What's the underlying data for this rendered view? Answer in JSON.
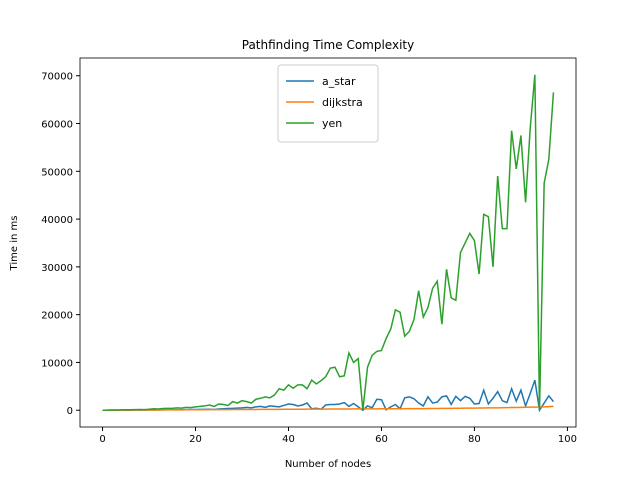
{
  "chart_data": {
    "type": "line",
    "title": "Pathfinding Time Complexity",
    "x_label": "Number of nodes",
    "y_label": "Time in ms",
    "x": [
      0,
      1,
      2,
      3,
      4,
      5,
      6,
      7,
      8,
      9,
      10,
      11,
      12,
      13,
      14,
      15,
      16,
      17,
      18,
      19,
      20,
      21,
      22,
      23,
      24,
      25,
      26,
      27,
      28,
      29,
      30,
      31,
      32,
      33,
      34,
      35,
      36,
      37,
      38,
      39,
      40,
      41,
      42,
      43,
      44,
      45,
      46,
      47,
      48,
      49,
      50,
      51,
      52,
      53,
      54,
      55,
      56,
      57,
      58,
      59,
      60,
      61,
      62,
      63,
      64,
      65,
      66,
      67,
      68,
      69,
      70,
      71,
      72,
      73,
      74,
      75,
      76,
      77,
      78,
      79,
      80,
      81,
      82,
      83,
      84,
      85,
      86,
      87,
      88,
      89,
      90,
      91,
      92,
      93,
      94,
      95,
      96,
      97
    ],
    "series": [
      {
        "name": "a_star",
        "color": "#1f77b4",
        "values": [
          0,
          5,
          10,
          15,
          20,
          25,
          30,
          35,
          40,
          45,
          50,
          60,
          70,
          80,
          90,
          100,
          110,
          120,
          130,
          140,
          150,
          170,
          180,
          200,
          150,
          250,
          300,
          350,
          400,
          450,
          500,
          600,
          500,
          700,
          800,
          600,
          900,
          800,
          700,
          1000,
          1300,
          1200,
          900,
          1100,
          1500,
          300,
          400,
          200,
          1100,
          1200,
          1200,
          1300,
          1600,
          800,
          1400,
          700,
          0,
          900,
          500,
          2300,
          2200,
          100,
          700,
          1200,
          300,
          2600,
          2800,
          2400,
          1500,
          900,
          2800,
          1500,
          1700,
          2800,
          3000,
          1200,
          2900,
          2000,
          2900,
          2500,
          1300,
          1400,
          4200,
          1300,
          2500,
          3900,
          2000,
          1600,
          4500,
          1900,
          4200,
          900,
          3500,
          6300,
          0,
          1500,
          3000,
          1800
        ]
      },
      {
        "name": "dijkstra",
        "color": "#ff7f0e",
        "values": [
          0,
          5,
          10,
          15,
          20,
          25,
          30,
          35,
          40,
          45,
          50,
          55,
          60,
          65,
          70,
          75,
          80,
          85,
          90,
          95,
          100,
          105,
          110,
          115,
          120,
          125,
          130,
          135,
          140,
          145,
          150,
          155,
          160,
          165,
          170,
          175,
          180,
          185,
          190,
          195,
          200,
          205,
          210,
          215,
          220,
          225,
          230,
          235,
          240,
          245,
          250,
          255,
          260,
          265,
          270,
          275,
          280,
          285,
          290,
          295,
          300,
          305,
          310,
          315,
          320,
          325,
          330,
          335,
          340,
          345,
          350,
          360,
          370,
          380,
          390,
          400,
          410,
          420,
          430,
          440,
          450,
          460,
          470,
          480,
          490,
          500,
          520,
          540,
          560,
          580,
          600,
          620,
          640,
          660,
          680,
          700,
          750,
          800
        ]
      },
      {
        "name": "yen",
        "color": "#2ca02c",
        "values": [
          0,
          20,
          40,
          60,
          80,
          100,
          90,
          120,
          150,
          130,
          200,
          300,
          250,
          350,
          400,
          380,
          500,
          450,
          600,
          550,
          700,
          800,
          900,
          1100,
          800,
          1300,
          1200,
          1000,
          1800,
          1500,
          2000,
          1800,
          1500,
          2300,
          2500,
          2800,
          2600,
          3200,
          4500,
          4200,
          5300,
          4600,
          5300,
          5300,
          4500,
          6300,
          5500,
          6200,
          7000,
          8800,
          9000,
          7000,
          7200,
          12000,
          10000,
          10800,
          0,
          9000,
          11500,
          12300,
          12500,
          15000,
          17000,
          21000,
          20500,
          15500,
          16500,
          19000,
          25000,
          19500,
          21500,
          25500,
          27000,
          18000,
          29500,
          23500,
          23000,
          33000,
          35000,
          37000,
          35500,
          28500,
          41000,
          40500,
          30000,
          49000,
          38000,
          38000,
          58500,
          50500,
          57500,
          43500,
          59000,
          70200,
          0,
          47500,
          52500,
          66500
        ]
      }
    ],
    "xlim": [
      -4.85,
      101.85
    ],
    "ylim": [
      -3510,
      73710
    ],
    "xticks": [
      0,
      20,
      40,
      60,
      80,
      100
    ],
    "yticks": [
      0,
      10000,
      20000,
      30000,
      40000,
      50000,
      60000,
      70000
    ],
    "legend": "upper center"
  }
}
